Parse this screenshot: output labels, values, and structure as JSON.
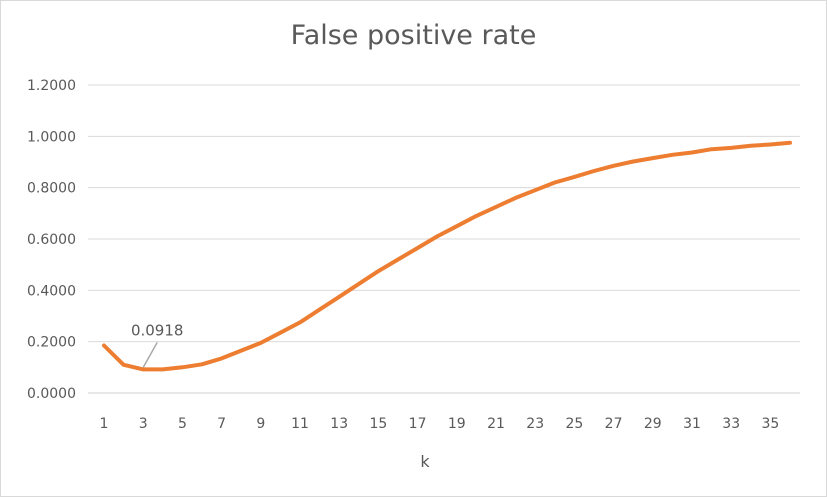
{
  "chart_data": {
    "type": "line",
    "title": "False positive rate",
    "xlabel": "k",
    "ylabel": "",
    "x": [
      1,
      2,
      3,
      4,
      5,
      6,
      7,
      8,
      9,
      10,
      11,
      12,
      13,
      14,
      15,
      16,
      17,
      18,
      19,
      20,
      21,
      22,
      23,
      24,
      25,
      26,
      27,
      28,
      29,
      30,
      31,
      32,
      33,
      34,
      35,
      36
    ],
    "x_tick_labels": [
      "1",
      "3",
      "5",
      "7",
      "9",
      "11",
      "13",
      "15",
      "17",
      "19",
      "21",
      "23",
      "25",
      "27",
      "29",
      "31",
      "33",
      "35"
    ],
    "y_tick_labels": [
      "0.0000",
      "0.2000",
      "0.4000",
      "0.6000",
      "0.8000",
      "1.0000",
      "1.2000"
    ],
    "ylim": [
      0,
      1.2
    ],
    "grid": "horizontal",
    "series": [
      {
        "color": "#ed7d31",
        "values": [
          0.185,
          0.11,
          0.0918,
          0.092,
          0.1,
          0.112,
          0.135,
          0.165,
          0.195,
          0.235,
          0.275,
          0.325,
          0.375,
          0.425,
          0.475,
          0.52,
          0.565,
          0.61,
          0.65,
          0.69,
          0.725,
          0.76,
          0.79,
          0.82,
          0.842,
          0.865,
          0.885,
          0.902,
          0.915,
          0.928,
          0.937,
          0.95,
          0.955,
          0.963,
          0.968,
          0.975
        ]
      }
    ],
    "annotation": {
      "text": "0.0918",
      "x": 3,
      "y": 0.0918
    }
  }
}
